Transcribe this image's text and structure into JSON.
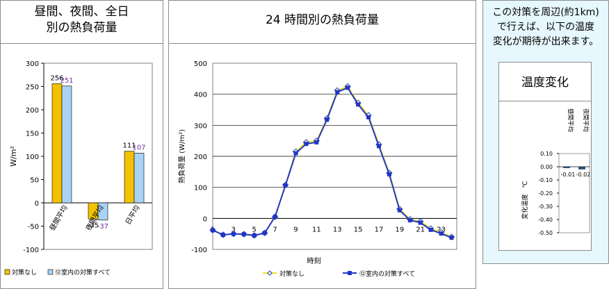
{
  "left_panel": {
    "title_line1": "昼間、夜間、全日",
    "title_line2": "別の熱負荷量"
  },
  "center_panel": {
    "title": "24 時間別の熱負荷量"
  },
  "right_panel": {
    "note_line1": "この対策を周辺(約1km)",
    "note_line2": "で行えば、以下の温度",
    "note_line3": "変化が期待が出来ます。",
    "inner_title": "温度変化"
  },
  "colors": {
    "yellow": "#F2C200",
    "lightblue": "#A9D2F5",
    "blue": "#2136C6",
    "line_yellow": "#F0E020",
    "purple": "#7030A0",
    "note_bg": "#E6F7FD"
  },
  "chart_data": [
    {
      "type": "bar",
      "ylabel": "W/m²",
      "ylim": [
        -100,
        300
      ],
      "yticks": [
        -100,
        -50,
        0,
        50,
        100,
        150,
        200,
        250,
        300
      ],
      "categories": [
        "昼間平均",
        "夜間平均",
        "日平均"
      ],
      "series": [
        {
          "name": "対策なし",
          "color": "#F2C200",
          "label_color": "#000000",
          "values": [
            256,
            -35,
            111
          ]
        },
        {
          "name": "⑫室内の対策すべて",
          "color": "#A9D2F5",
          "label_color": "#7030A0",
          "values": [
            251,
            -37,
            107
          ]
        }
      ],
      "legend": "bottom"
    },
    {
      "type": "line",
      "title": "24 時間別の熱負荷量",
      "xlabel": "時刻",
      "ylabel": "熱負荷量 (W/m²)",
      "ylim": [
        -100,
        500
      ],
      "yticks": [
        -100,
        0,
        100,
        200,
        300,
        400,
        500
      ],
      "x": [
        1,
        2,
        3,
        4,
        5,
        6,
        7,
        8,
        9,
        10,
        11,
        12,
        13,
        14,
        15,
        16,
        17,
        18,
        19,
        20,
        21,
        22,
        23,
        24
      ],
      "xtick_labels": [
        "1",
        "3",
        "5",
        "7",
        "9",
        "11",
        "13",
        "15",
        "17",
        "19",
        "21",
        "23"
      ],
      "series": [
        {
          "name": "対策なし",
          "color": "#F0E020",
          "marker": "diamond",
          "values": [
            -38,
            -53,
            -50,
            -51,
            -55,
            -47,
            5,
            108,
            215,
            245,
            250,
            322,
            412,
            425,
            372,
            332,
            238,
            146,
            30,
            -3,
            -10,
            -33,
            -45,
            -60
          ]
        },
        {
          "name": "⑫室内の対策すべて",
          "color": "#2136C6",
          "marker": "square",
          "values": [
            -38,
            -53,
            -50,
            -51,
            -55,
            -47,
            5,
            106,
            210,
            240,
            245,
            318,
            407,
            421,
            367,
            326,
            233,
            142,
            26,
            -6,
            -14,
            -37,
            -49,
            -62
          ]
        }
      ],
      "legend": "bottom"
    },
    {
      "type": "bar",
      "ylabel": "変化温度　℃",
      "ylim": [
        -0.5,
        0.1
      ],
      "yticks": [
        0.1,
        0.0,
        -0.1,
        -0.2,
        -0.3,
        -0.4,
        -0.5
      ],
      "ytick_labels": [
        "0.10",
        "0.00",
        "-0.10",
        "-0.20",
        "-0.30",
        "-0.40",
        "-0.50"
      ],
      "categories": [
        "昼間平均",
        "夜間平均"
      ],
      "value_labels": [
        "-0.01",
        "-0.02"
      ],
      "series": [
        {
          "color": "#1F4E79",
          "values": [
            -0.01,
            -0.02
          ]
        }
      ]
    }
  ]
}
